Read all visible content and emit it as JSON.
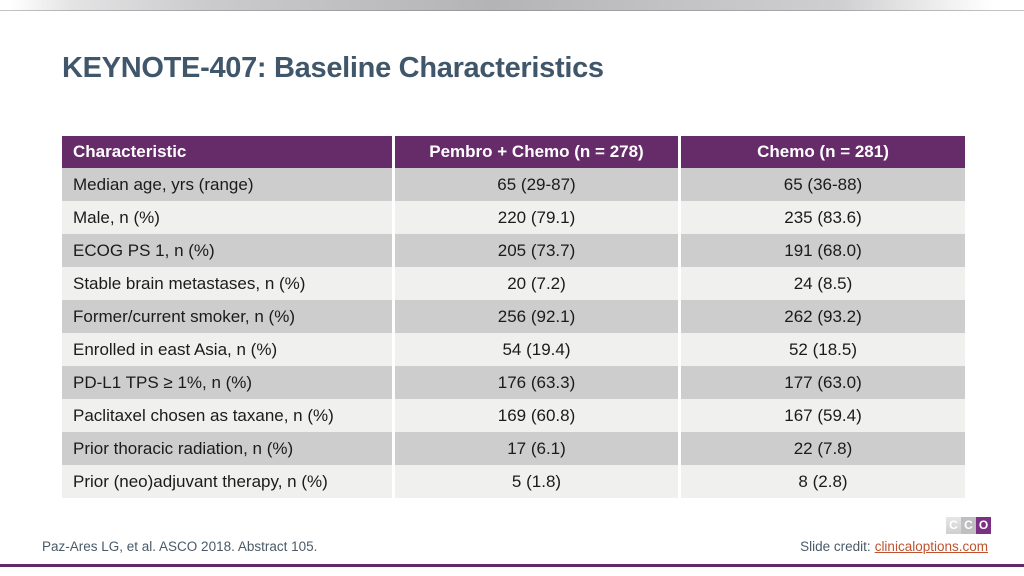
{
  "slide": {
    "title": "KEYNOTE-407: Baseline Characteristics"
  },
  "table": {
    "headers": [
      "Characteristic",
      "Pembro + Chemo (n = 278)",
      "Chemo (n = 281)"
    ],
    "rows": [
      [
        "Median age, yrs (range)",
        "65 (29-87)",
        "65 (36-88)"
      ],
      [
        "Male, n (%)",
        "220 (79.1)",
        "235 (83.6)"
      ],
      [
        "ECOG PS 1, n (%)",
        "205 (73.7)",
        "191 (68.0)"
      ],
      [
        "Stable brain metastases, n (%)",
        "20 (7.2)",
        "24 (8.5)"
      ],
      [
        "Former/current smoker, n (%)",
        "256 (92.1)",
        "262 (93.2)"
      ],
      [
        "Enrolled in east Asia, n (%)",
        "54 (19.4)",
        "52 (18.5)"
      ],
      [
        "PD-L1 TPS ≥ 1%, n (%)",
        "176 (63.3)",
        "177 (63.0)"
      ],
      [
        "Paclitaxel chosen as taxane, n (%)",
        "169 (60.8)",
        "167 (59.4)"
      ],
      [
        "Prior thoracic radiation, n (%)",
        "17 (6.1)",
        "22 (7.8)"
      ],
      [
        "Prior (neo)adjuvant therapy, n (%)",
        "5 (1.8)",
        "8 (2.8)"
      ]
    ]
  },
  "footer": {
    "reference": "Paz-Ares LG, et al. ASCO 2018. Abstract 105.",
    "credit_label": "Slide credit:",
    "credit_link": "clinicaloptions.com"
  },
  "logo": {
    "letters": [
      "C",
      "C",
      "O"
    ]
  },
  "colors": {
    "header_bg": "#662b69",
    "row_odd": "#cdcdcd",
    "row_even": "#f0f0ef",
    "title": "#40566a",
    "footer_text": "#4a5a68",
    "link": "#c1522d",
    "accent_line": "#5e2d66",
    "logo_purple": "#7c3084"
  }
}
